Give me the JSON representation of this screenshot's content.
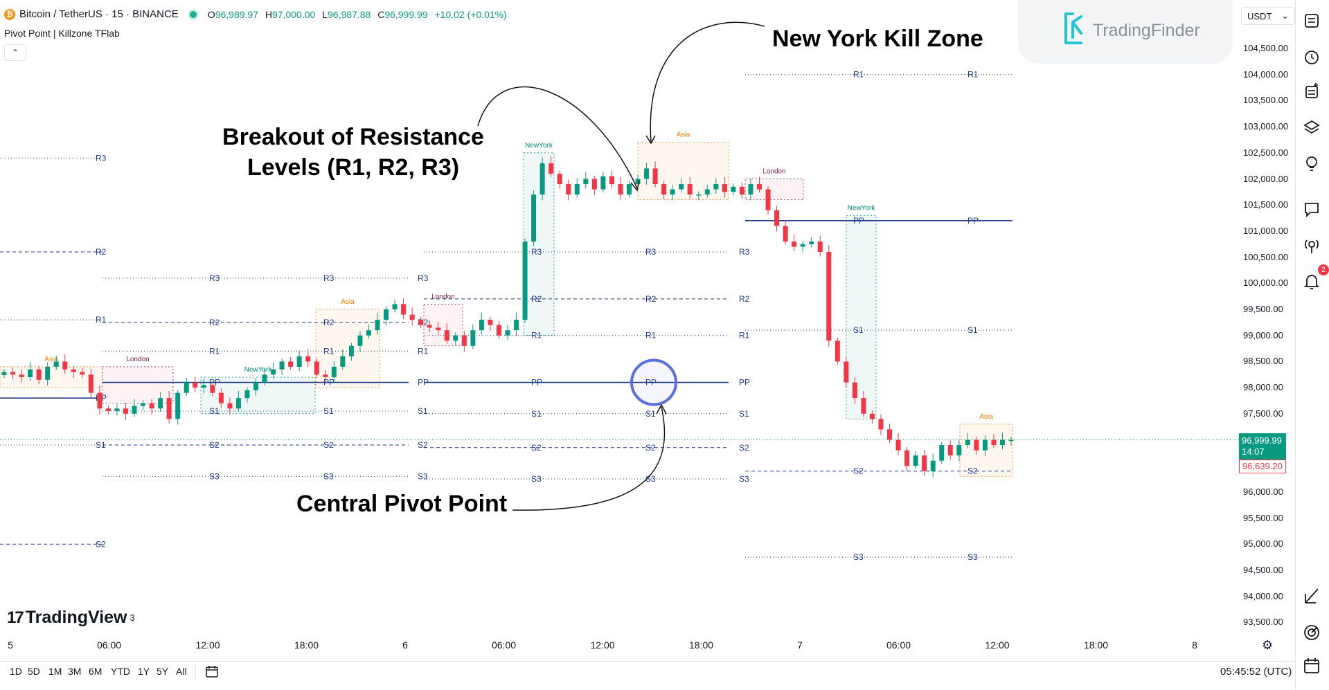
{
  "header": {
    "symbol": "Bitcoin / TetherUS · 15 · BINANCE",
    "coin_glyph": "₿",
    "ohlc": {
      "o_label": "O",
      "o": "96,989.97",
      "h_label": "H",
      "h": "97,000.00",
      "l_label": "L",
      "l": "96,987.88",
      "c_label": "C",
      "c": "96,999.99",
      "change": "+10.02 (+0.01%)"
    },
    "indicator": "Pivot Point | Killzone TFlab",
    "collapse_glyph": "⌃"
  },
  "watermark": {
    "text": "TradingFinder"
  },
  "currency": {
    "value": "USDT",
    "arrow": "⌄"
  },
  "price_axis": {
    "labels": [
      "104,500.00",
      "104,000.00",
      "103,500.00",
      "103,000.00",
      "102,500.00",
      "102,000.00",
      "101,500.00",
      "101,000.00",
      "100,500.00",
      "100,000.00",
      "99,500.00",
      "99,000.00",
      "98,500.00",
      "98,000.00",
      "97,500.00",
      "97,000.00",
      "96,500.00",
      "96,000.00",
      "95,500.00",
      "95,000.00",
      "94,500.00",
      "94,000.00",
      "93,500.00"
    ],
    "current_price": "96,999.99",
    "countdown": "14:07",
    "marked_price": "96,639.20"
  },
  "time_axis": {
    "labels": [
      "5",
      "06:00",
      "12:00",
      "18:00",
      "6",
      "06:00",
      "12:00",
      "18:00",
      "7",
      "06:00",
      "12:00",
      "18:00",
      "8"
    ]
  },
  "branding": {
    "tradingview": "TradingView",
    "tv_superscript": "3"
  },
  "bottom_bar": {
    "timeframes": [
      "1D",
      "5D",
      "1M",
      "3M",
      "6M",
      "YTD",
      "1Y",
      "5Y",
      "All"
    ],
    "clock": "05:45:52 (UTC)"
  },
  "toolbar": {
    "icons": [
      "watchlist-icon",
      "alarm-clock-icon",
      "add-list-icon",
      "layers-icon",
      "idea-bulb-icon",
      "chat-icon",
      "signal-icon",
      "notification-bell-icon",
      "drawing-line-icon",
      "target-icon",
      "calendar-icon"
    ],
    "notification_count": "2"
  },
  "annotations": {
    "ny_killzone": "New York Kill Zone",
    "breakout_line1": "Breakout of Resistance",
    "breakout_line2": "Levels (R1, R2, R3)",
    "central_pivot": "Central Pivot Point"
  },
  "colors": {
    "up": "#089981",
    "down": "#f23645",
    "pivot_line": "#1e3a8a",
    "asia": "#f57c00",
    "london": "#8b1a4a",
    "newyork": "#00897b",
    "highlight_circle": "#5b6ee1"
  },
  "chart_data": {
    "type": "candlestick",
    "symbol": "Bitcoin / TetherUS",
    "interval": "15",
    "exchange": "BINANCE",
    "ylim": [
      93300,
      104700
    ],
    "session_labels": [
      "Asia",
      "London",
      "NewYork"
    ],
    "level_labels": [
      "R3",
      "R2",
      "R1",
      "PP",
      "S1",
      "S2",
      "S3"
    ],
    "pivot_days": [
      {
        "day": "5",
        "levels": {
          "R3": 102400,
          "R2": 100600,
          "R1": 99300,
          "PP": 97800,
          "S1": 96900,
          "S2": 95000
        }
      },
      {
        "day": "6",
        "levels": {
          "R3": 100100,
          "R2": 99250,
          "R1": 98700,
          "PP": 98100,
          "S1": 97550,
          "S2": 96900,
          "S3": 96300
        }
      },
      {
        "day": "6b",
        "levels": {
          "R3": 100600,
          "R2": 99700,
          "R1": 99000,
          "PP": 98100,
          "S1": 97500,
          "S2": 96850,
          "S3": 96250
        }
      },
      {
        "day": "7",
        "levels": {
          "R1": 104000,
          "PP": 101200,
          "S1": 99100,
          "S2": 96400,
          "S3": 94750
        }
      }
    ],
    "sessions": [
      {
        "label": "Asia",
        "price_high": 98400,
        "price_low": 98000
      },
      {
        "label": "London",
        "price_high": 98400,
        "price_low": 97700
      },
      {
        "label": "NewYork",
        "price_high": 98200,
        "price_low": 97500
      },
      {
        "label": "Asia",
        "price_high": 99500,
        "price_low": 98000
      },
      {
        "label": "London",
        "price_high": 99600,
        "price_low": 98800
      },
      {
        "label": "NewYork",
        "price_high": 102500,
        "price_low": 99000
      },
      {
        "label": "Asia",
        "price_high": 102700,
        "price_low": 101600
      },
      {
        "label": "London",
        "price_high": 102000,
        "price_low": 101600
      },
      {
        "label": "NewYork",
        "price_high": 101300,
        "price_low": 97400
      },
      {
        "label": "Asia",
        "price_high": 97300,
        "price_low": 96300
      }
    ],
    "close_path": [
      98300,
      98250,
      98200,
      98350,
      98150,
      98400,
      98500,
      98350,
      98300,
      98250,
      97900,
      97600,
      97550,
      97600,
      97500,
      97650,
      97700,
      97600,
      97800,
      97400,
      97900,
      98100,
      98000,
      98050,
      97900,
      97700,
      97600,
      97800,
      97950,
      98100,
      98250,
      98350,
      98500,
      98400,
      98600,
      98500,
      98250,
      98200,
      98400,
      98600,
      98800,
      99000,
      99100,
      99300,
      99500,
      99600,
      99400,
      99300,
      99200,
      99150,
      99100,
      98900,
      99000,
      98800,
      99100,
      99300,
      99200,
      99000,
      99100,
      99300,
      100800,
      101700,
      102300,
      102100,
      101900,
      101700,
      101900,
      102000,
      101800,
      102050,
      101900,
      101700,
      101900,
      102000,
      102200,
      101900,
      101700,
      101800,
      101900,
      101700,
      101700,
      101800,
      101900,
      101750,
      101850,
      101700,
      101900,
      101800,
      101400,
      101100,
      100800,
      100700,
      100750,
      100800,
      100600,
      98900,
      98500,
      98100,
      97800,
      97500,
      97400,
      97200,
      97000,
      96800,
      96500,
      96700,
      96400,
      96600,
      96900,
      96700,
      96900,
      97000,
      96800,
      97000,
      96900,
      97000,
      97000
    ]
  }
}
